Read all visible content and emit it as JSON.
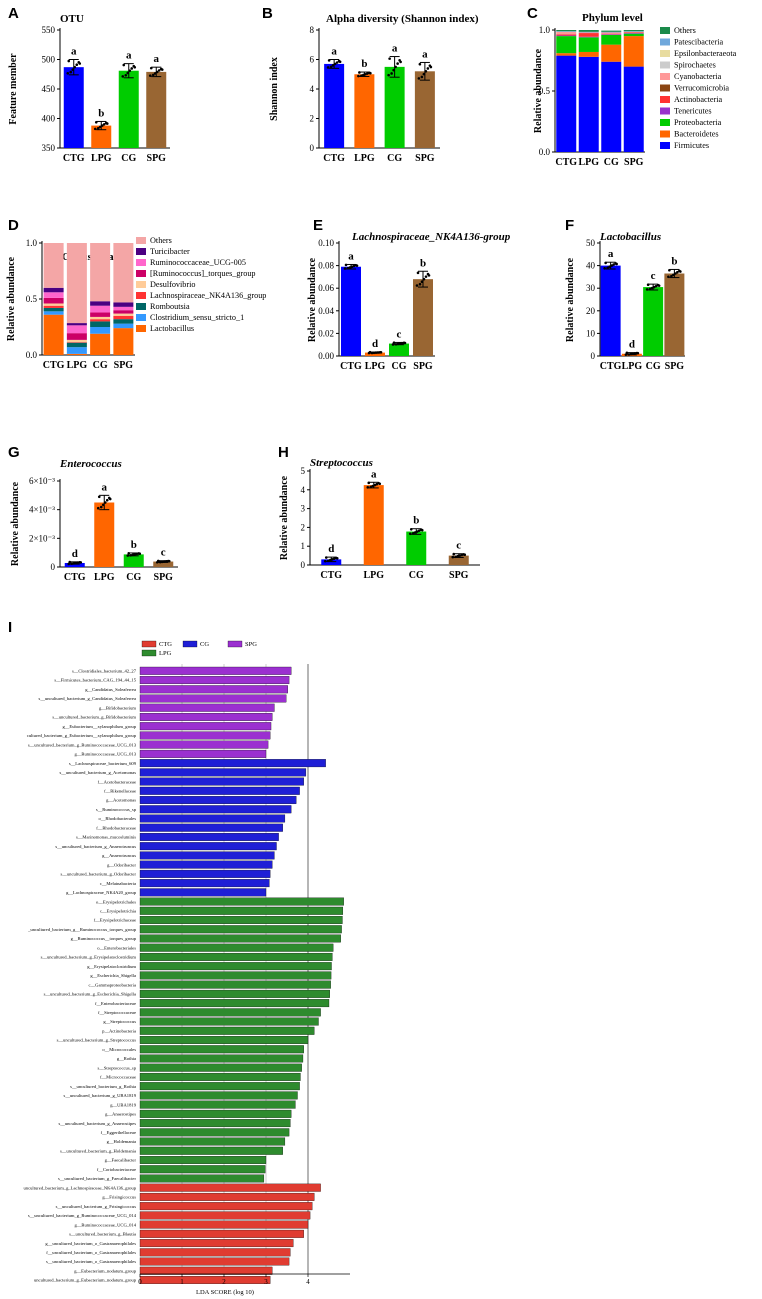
{
  "chart_data": [
    {
      "id": "A",
      "panel_label": "A",
      "type": "bar",
      "title": "OTU",
      "ylabel": "Feature member",
      "ylim": [
        350,
        550
      ],
      "yticks": [
        350,
        400,
        450,
        500,
        550
      ],
      "categories": [
        "CTG",
        "LPG",
        "CG",
        "SPG"
      ],
      "values": [
        487,
        388,
        481,
        479
      ],
      "errors": [
        13,
        7,
        12,
        8
      ],
      "colors": [
        "#0000ff",
        "#ff6600",
        "#00cc00",
        "#996633"
      ],
      "letters": [
        "a",
        "b",
        "a",
        "a"
      ]
    },
    {
      "id": "B",
      "panel_label": "B",
      "type": "bar",
      "title": "Alpha diversity (Shannon index)",
      "ylabel": "Shannon index",
      "ylim": [
        0,
        8
      ],
      "yticks": [
        0,
        2,
        4,
        6,
        8
      ],
      "categories": [
        "CTG",
        "LPG",
        "CG",
        "SPG"
      ],
      "values": [
        5.7,
        5.0,
        5.5,
        5.2
      ],
      "errors": [
        0.3,
        0.15,
        0.7,
        0.6
      ],
      "colors": [
        "#0000ff",
        "#ff6600",
        "#00cc00",
        "#996633"
      ],
      "letters": [
        "a",
        "b",
        "a",
        "a"
      ]
    },
    {
      "id": "C",
      "panel_label": "C",
      "type": "bar",
      "stacked": true,
      "title": "Phylum level",
      "ylabel": "Relative abundance",
      "ylim": [
        0,
        1
      ],
      "yticks": [
        0.0,
        0.5,
        1.0
      ],
      "categories": [
        "CTG",
        "LPG",
        "CG",
        "SPG"
      ],
      "series": [
        {
          "name": "Firmicutes",
          "color": "#0000ff",
          "values": [
            0.79,
            0.78,
            0.74,
            0.7
          ]
        },
        {
          "name": "Bacteroidetes",
          "color": "#ff6600",
          "values": [
            0.02,
            0.04,
            0.14,
            0.25
          ]
        },
        {
          "name": "Proteobacteria",
          "color": "#00cc00",
          "values": [
            0.14,
            0.12,
            0.08,
            0.02
          ]
        },
        {
          "name": "Tenericutes",
          "color": "#9933cc",
          "values": [
            0.005,
            0.005,
            0.005,
            0.005
          ]
        },
        {
          "name": "Actinobacteria",
          "color": "#ff3333",
          "values": [
            0.01,
            0.03,
            0.005,
            0.005
          ]
        },
        {
          "name": "Verrucomicrobia",
          "color": "#8b4513",
          "values": [
            0.0,
            0.0,
            0.0,
            0.0
          ]
        },
        {
          "name": "Cyanobacteria",
          "color": "#ff9999",
          "values": [
            0.02,
            0.005,
            0.01,
            0.005
          ]
        },
        {
          "name": "Spirochaetes",
          "color": "#cccccc",
          "values": [
            0.0,
            0.0,
            0.0,
            0.0
          ]
        },
        {
          "name": "Epsilonbacteraeota",
          "color": "#e8dca0",
          "values": [
            0.0,
            0.0,
            0.0,
            0.0
          ]
        },
        {
          "name": "Patescibacteria",
          "color": "#6fa8dc",
          "values": [
            0.005,
            0.005,
            0.005,
            0.005
          ]
        },
        {
          "name": "Others",
          "color": "#1a8a4a",
          "values": [
            0.01,
            0.015,
            0.01,
            0.01
          ]
        }
      ]
    },
    {
      "id": "D",
      "panel_label": "D",
      "type": "bar",
      "stacked": true,
      "title": "Genus leval",
      "ylabel": "Relative abundance",
      "ylim": [
        0,
        1
      ],
      "yticks": [
        0.0,
        0.5,
        1.0
      ],
      "categories": [
        "CTG",
        "LPG",
        "CG",
        "SPG"
      ],
      "series": [
        {
          "name": "Lactobacillus",
          "color": "#ff6600",
          "values": [
            0.36,
            0.01,
            0.19,
            0.24
          ]
        },
        {
          "name": "Clostridium_sensu_stricto_1",
          "color": "#3399ff",
          "values": [
            0.03,
            0.06,
            0.06,
            0.04
          ]
        },
        {
          "name": "Romboutsia",
          "color": "#006666",
          "values": [
            0.03,
            0.04,
            0.05,
            0.04
          ]
        },
        {
          "name": "Lachnospiraceae_NK4A136_group",
          "color": "#ff3333",
          "values": [
            0.02,
            0.005,
            0.02,
            0.03
          ]
        },
        {
          "name": "Desulfovibrio",
          "color": "#ffcc99",
          "values": [
            0.02,
            0.02,
            0.02,
            0.02
          ]
        },
        {
          "name": "[Ruminococcus]_torques_group",
          "color": "#cc0066",
          "values": [
            0.05,
            0.06,
            0.04,
            0.03
          ]
        },
        {
          "name": "Ruminococcaceae_UCG-005",
          "color": "#ff66cc",
          "values": [
            0.05,
            0.07,
            0.06,
            0.03
          ]
        },
        {
          "name": "Turicibacter",
          "color": "#4b0082",
          "values": [
            0.04,
            0.02,
            0.04,
            0.04
          ]
        },
        {
          "name": "Others",
          "color": "#f4a6a6",
          "values": [
            0.4,
            0.715,
            0.52,
            0.53
          ]
        }
      ]
    },
    {
      "id": "E",
      "panel_label": "E",
      "type": "bar",
      "title": "Lachnospiraceae_NK4A136-group",
      "title_italic": true,
      "ylabel": "Relative abundance",
      "ylim": [
        0,
        0.1
      ],
      "yticks": [
        0.0,
        0.02,
        0.04,
        0.06,
        0.08,
        0.1
      ],
      "categories": [
        "CTG",
        "LPG",
        "CG",
        "SPG"
      ],
      "values": [
        0.079,
        0.003,
        0.011,
        0.068
      ],
      "errors": [
        0.002,
        0.0005,
        0.001,
        0.007
      ],
      "colors": [
        "#0000ff",
        "#ff6600",
        "#00cc00",
        "#996633"
      ],
      "letters": [
        "a",
        "d",
        "c",
        "b"
      ]
    },
    {
      "id": "F",
      "panel_label": "F",
      "type": "bar",
      "title": "Lactobacillus",
      "title_italic": true,
      "ylabel": "Relative abundance",
      "ylim": [
        0,
        50
      ],
      "yticks": [
        0,
        10,
        20,
        30,
        40,
        50
      ],
      "categories": [
        "CTG",
        "LPG",
        "CG",
        "SPG"
      ],
      "values": [
        40,
        1,
        30.5,
        36.5
      ],
      "errors": [
        1.5,
        0.5,
        1.3,
        1.8
      ],
      "colors": [
        "#0000ff",
        "#ff6600",
        "#00cc00",
        "#996633"
      ],
      "letters": [
        "a",
        "d",
        "c",
        "b"
      ]
    },
    {
      "id": "G",
      "panel_label": "G",
      "type": "bar",
      "title": "Enterococcus",
      "title_italic": true,
      "ylabel": "Relative abundance",
      "ylim": [
        0,
        0.006
      ],
      "ytick_values": [
        0,
        0.002,
        0.004,
        0.006
      ],
      "ytick_labels": [
        "0",
        "2×10⁻³",
        "4×10⁻³",
        "6×10⁻³"
      ],
      "categories": [
        "CTG",
        "LPG",
        "CG",
        "SPG"
      ],
      "values": [
        0.00028,
        0.0045,
        0.00088,
        0.00038
      ],
      "errors": [
        8e-05,
        0.0005,
        0.0001,
        6e-05
      ],
      "colors": [
        "#0000ff",
        "#ff6600",
        "#00cc00",
        "#996633"
      ],
      "letters": [
        "d",
        "a",
        "b",
        "c"
      ]
    },
    {
      "id": "H",
      "panel_label": "H",
      "type": "bar",
      "title": "Streptococcus",
      "title_italic": true,
      "ylabel": "Relative abundance",
      "ylim": [
        0,
        5
      ],
      "yticks": [
        0,
        1,
        2,
        3,
        4,
        5
      ],
      "categories": [
        "CTG",
        "LPG",
        "CG",
        "SPG"
      ],
      "values": [
        0.3,
        4.25,
        1.78,
        0.5
      ],
      "errors": [
        0.12,
        0.15,
        0.15,
        0.1
      ],
      "colors": [
        "#0000ff",
        "#ff6600",
        "#00cc00",
        "#996633"
      ],
      "letters": [
        "d",
        "a",
        "b",
        "c"
      ]
    },
    {
      "id": "I",
      "panel_label": "I",
      "type": "bar",
      "orientation": "horizontal",
      "xlabel": "LDA SCORE (log 10)",
      "xlim": [
        0,
        5
      ],
      "xticks": [
        0,
        1,
        2,
        3,
        4
      ],
      "legend": [
        {
          "name": "CTG",
          "color": "#e03c31"
        },
        {
          "name": "CG",
          "color": "#1f1fd6"
        },
        {
          "name": "SPG",
          "color": "#9b30d0"
        },
        {
          "name": "LPG",
          "color": "#2e8b2e"
        }
      ],
      "groups": [
        {
          "group": "SPG",
          "color": "#9b30d0",
          "bars": [
            {
              "label": "s__Clostridiales_bacterium_42_27",
              "value": 3.6
            },
            {
              "label": "s__Firmicutes_bacterium_CAG_194_44_15",
              "value": 3.55
            },
            {
              "label": "g__Candidatus_Soleaferrea",
              "value": 3.52
            },
            {
              "label": "s__uncultured_bacterium_g_Candidatus_Soleaferrea",
              "value": 3.48
            },
            {
              "label": "g__Bifidobacterium",
              "value": 3.2
            },
            {
              "label": "s__uncultured_bacterium_g_Bifidobacterium",
              "value": 3.15
            },
            {
              "label": "g__Eubacterium__xylanophilum_group",
              "value": 3.12
            },
            {
              "label": "cultured_bacterium_g_Eubacterium__xylanophilum_group",
              "value": 3.1
            },
            {
              "label": "s__uncultured_bacterium_g_Ruminococcaceae_UCG_013",
              "value": 3.05
            },
            {
              "label": "g__Ruminococcaceae_UCG_013",
              "value": 3.0
            }
          ]
        },
        {
          "group": "CG",
          "color": "#1f1fd6",
          "bars": [
            {
              "label": "s__Lachnospiraceae_bacterium_609",
              "value": 4.42
            },
            {
              "label": "s__uncultured_bacterium_g_Acetomonas",
              "value": 3.95
            },
            {
              "label": "f__Acetobacteraceae",
              "value": 3.9
            },
            {
              "label": "f__Rikenellaceae",
              "value": 3.8
            },
            {
              "label": "g__Acetomonas",
              "value": 3.72
            },
            {
              "label": "s__Ruminococcus_sp",
              "value": 3.6
            },
            {
              "label": "o__Rhodobacterales",
              "value": 3.45
            },
            {
              "label": "f__Rhodobacteraceae",
              "value": 3.4
            },
            {
              "label": "s__Marinomonas_mucosluminis",
              "value": 3.3
            },
            {
              "label": "s__uncultured_bacterium_g_Anaerotruncus",
              "value": 3.25
            },
            {
              "label": "g__Anaerotruncus",
              "value": 3.2
            },
            {
              "label": "g__Odoribacter",
              "value": 3.15
            },
            {
              "label": "s__uncultured_bacterium_g_Odoribacter",
              "value": 3.1
            },
            {
              "label": "c__Melainabacteria",
              "value": 3.08
            },
            {
              "label": "g__Lachnospiraceae_NK4A20_group",
              "value": 3.0
            }
          ]
        },
        {
          "group": "LPG",
          "color": "#2e8b2e",
          "bars": [
            {
              "label": "o__Erysipelotrichales",
              "value": 4.85
            },
            {
              "label": "c__Erysipelotrichia",
              "value": 4.83
            },
            {
              "label": "f__Erysipelotrichaceae",
              "value": 4.82
            },
            {
              "label": "_uncultured_bacterium_g__Ruminococcus_torques_group",
              "value": 4.8
            },
            {
              "label": "g__Ruminococcus__torques_group",
              "value": 4.78
            },
            {
              "label": "o__Enterobacteriales",
              "value": 4.6
            },
            {
              "label": "s__uncultured_bacterium_g_Erysipelatoclostridium",
              "value": 4.58
            },
            {
              "label": "g__Erysipelatoclostridium",
              "value": 4.56
            },
            {
              "label": "g__Escherichia_Shigella",
              "value": 4.55
            },
            {
              "label": "c__Gammaproteobacteria",
              "value": 4.54
            },
            {
              "label": "s__uncultured_bacterium_g_Escherichia_Shigella",
              "value": 4.52
            },
            {
              "label": "f__Enterobacteriaceae",
              "value": 4.5
            },
            {
              "label": "f__Streptococcaceae",
              "value": 4.3
            },
            {
              "label": "g__Streptococcus",
              "value": 4.25
            },
            {
              "label": "p__Actinobacteria",
              "value": 4.15
            },
            {
              "label": "s__uncultured_bacterium_g_Streptococcus",
              "value": 4.0
            },
            {
              "label": "o__Micrococcales",
              "value": 3.9
            },
            {
              "label": "g__Rothia",
              "value": 3.88
            },
            {
              "label": "s__Streptococcus_sp",
              "value": 3.85
            },
            {
              "label": "f__Micrococcaceae",
              "value": 3.82
            },
            {
              "label": "s__uncultured_bacterium_g_Rothia",
              "value": 3.8
            },
            {
              "label": "s__uncultured_bacterium_g_UBA1819",
              "value": 3.75
            },
            {
              "label": "g__UBA1819",
              "value": 3.7
            },
            {
              "label": "g__Anaerostipes",
              "value": 3.6
            },
            {
              "label": "s__uncultured_bacterium_g_Anaerostipes",
              "value": 3.58
            },
            {
              "label": "f__Eggerthellaceae",
              "value": 3.55
            },
            {
              "label": "g__Holdemania",
              "value": 3.45
            },
            {
              "label": "s__uncultured_bacterium_g_Holdemania",
              "value": 3.4
            },
            {
              "label": "g__Faecalibacter",
              "value": 3.0
            },
            {
              "label": "f__Coriobacteriaceae",
              "value": 2.98
            },
            {
              "label": "s__uncultured_bacterium_g_Faecalibacter",
              "value": 2.95
            }
          ]
        },
        {
          "group": "CTG",
          "color": "#e03c31",
          "bars": [
            {
              "label": "uncultured_bacterium_g_Lachnospiraceae_NK4A136_group",
              "value": 4.3
            },
            {
              "label": "g__Frisingicoccus",
              "value": 4.15
            },
            {
              "label": "s__uncultured_bacterium_g_Frisingicoccus",
              "value": 4.1
            },
            {
              "label": "s__uncultured_bacterium_g_Ruminococcaceae_UCG_014",
              "value": 4.05
            },
            {
              "label": "g__Ruminococcaceae_UCG_014",
              "value": 4.0
            },
            {
              "label": "s__uncultured_bacterium_g_Blautia",
              "value": 3.9
            },
            {
              "label": "g__uncultured_bacterium_o_Gastranaerophilales",
              "value": 3.65
            },
            {
              "label": "f__uncultured_bacterium_o_Gastranaerophilales",
              "value": 3.58
            },
            {
              "label": "s__uncultured_bacterium_o_Gastranaerophilales",
              "value": 3.55
            },
            {
              "label": "g__Eubacterium_nodatum_group",
              "value": 3.15
            },
            {
              "label": "uncultured_bacterium_g_Eubacterium_nodatum_group",
              "value": 3.1
            }
          ]
        }
      ]
    }
  ]
}
